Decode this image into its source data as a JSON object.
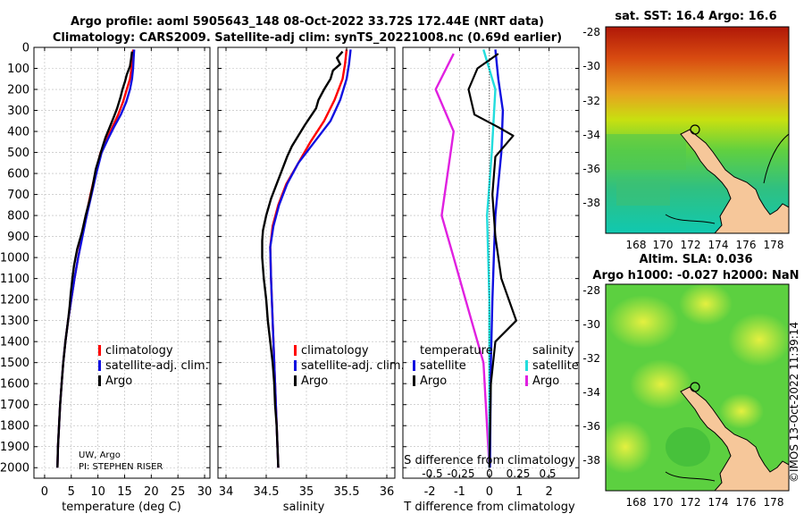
{
  "header": {
    "title_line1": "Argo profile: aoml 5905643_148 08-Oct-2022 33.72S 172.44E (NRT data)",
    "title_line2": "Climatology: CARS2009. Satellite-adj clim: synTS_20221008.nc (0.69d earlier)"
  },
  "depth_ticks": [
    0,
    100,
    200,
    300,
    400,
    500,
    600,
    700,
    800,
    900,
    1000,
    1100,
    1200,
    1300,
    1400,
    1500,
    1600,
    1700,
    1800,
    1900,
    2000
  ],
  "colors": {
    "climatology": "#ff0000",
    "satellite": "#1010e0",
    "argo": "#000000",
    "sat_salinity": "#22dddd",
    "argo_salinity": "#e020e0",
    "grid": "#b8b8b8"
  },
  "temperature_panel": {
    "xlabel": "temperature (deg C)",
    "xlim": [
      -2,
      31
    ],
    "xticks": [
      0,
      5,
      10,
      15,
      20,
      25,
      30
    ],
    "ylim": [
      0,
      2050
    ],
    "legend": [
      "climatology",
      "satellite-adj. clim.",
      "Argo"
    ],
    "note_line1": "UW, Argo",
    "note_line2": "PI: STEPHEN RISER",
    "series": {
      "climatology": [
        [
          16.6,
          10
        ],
        [
          16.5,
          50
        ],
        [
          16.3,
          100
        ],
        [
          16,
          150
        ],
        [
          15.4,
          200
        ],
        [
          14.7,
          260
        ],
        [
          13.8,
          320
        ],
        [
          12.7,
          380
        ],
        [
          11.6,
          440
        ],
        [
          10.5,
          500
        ],
        [
          9.5,
          600
        ],
        [
          8.6,
          700
        ],
        [
          7.8,
          800
        ],
        [
          7.0,
          900
        ],
        [
          6.3,
          1000
        ],
        [
          5.6,
          1100
        ],
        [
          5.0,
          1200
        ],
        [
          4.4,
          1300
        ],
        [
          3.9,
          1400
        ],
        [
          3.5,
          1500
        ],
        [
          3.2,
          1600
        ],
        [
          2.9,
          1700
        ],
        [
          2.7,
          1800
        ],
        [
          2.5,
          1900
        ],
        [
          2.4,
          2000
        ]
      ],
      "satellite": [
        [
          16.8,
          10
        ],
        [
          16.7,
          50
        ],
        [
          16.6,
          100
        ],
        [
          16.4,
          150
        ],
        [
          16.0,
          200
        ],
        [
          15.3,
          260
        ],
        [
          14.3,
          320
        ],
        [
          13.0,
          380
        ],
        [
          11.8,
          440
        ],
        [
          10.7,
          500
        ],
        [
          9.7,
          600
        ],
        [
          8.8,
          700
        ],
        [
          7.9,
          800
        ],
        [
          7.1,
          900
        ],
        [
          6.3,
          1000
        ],
        [
          5.6,
          1100
        ],
        [
          5.0,
          1200
        ],
        [
          4.4,
          1300
        ],
        [
          3.9,
          1400
        ],
        [
          3.5,
          1500
        ],
        [
          3.2,
          1600
        ],
        [
          2.9,
          1700
        ],
        [
          2.7,
          1800
        ],
        [
          2.5,
          1900
        ],
        [
          2.4,
          2000
        ]
      ],
      "argo": [
        [
          16.4,
          20
        ],
        [
          16.2,
          60
        ],
        [
          16.0,
          90
        ],
        [
          15.4,
          130
        ],
        [
          15.1,
          160
        ],
        [
          14.6,
          200
        ],
        [
          14.2,
          240
        ],
        [
          13.6,
          290
        ],
        [
          13.0,
          330
        ],
        [
          12.2,
          380
        ],
        [
          11.4,
          430
        ],
        [
          10.9,
          470
        ],
        [
          10.3,
          520
        ],
        [
          9.6,
          580
        ],
        [
          9.0,
          660
        ],
        [
          8.5,
          720
        ],
        [
          7.7,
          800
        ],
        [
          7.0,
          880
        ],
        [
          6.1,
          960
        ],
        [
          5.5,
          1040
        ],
        [
          5.2,
          1100
        ],
        [
          4.9,
          1170
        ],
        [
          4.7,
          1230
        ],
        [
          4.4,
          1300
        ],
        [
          3.9,
          1400
        ],
        [
          3.5,
          1500
        ],
        [
          3.2,
          1600
        ],
        [
          2.9,
          1700
        ],
        [
          2.7,
          1800
        ],
        [
          2.5,
          1900
        ],
        [
          2.4,
          2000
        ]
      ]
    }
  },
  "salinity_panel": {
    "xlabel": "salinity",
    "xlim": [
      33.9,
      36.1
    ],
    "xticks": [
      34,
      34.5,
      35,
      35.5,
      36
    ],
    "xtick_labels": [
      "34",
      "34.5",
      "35",
      "35.5",
      "36"
    ],
    "ylim": [
      0,
      2050
    ],
    "legend": [
      "climatology",
      "satellite-adj. clim.",
      "Argo"
    ],
    "series": {
      "climatology": [
        [
          35.5,
          10
        ],
        [
          35.48,
          80
        ],
        [
          35.45,
          150
        ],
        [
          35.35,
          250
        ],
        [
          35.22,
          350
        ],
        [
          35.05,
          450
        ],
        [
          34.9,
          550
        ],
        [
          34.75,
          650
        ],
        [
          34.65,
          750
        ],
        [
          34.58,
          850
        ],
        [
          34.55,
          950
        ],
        [
          34.56,
          1100
        ],
        [
          34.58,
          1300
        ],
        [
          34.6,
          1500
        ],
        [
          34.62,
          1700
        ],
        [
          34.64,
          1900
        ],
        [
          34.65,
          2000
        ]
      ],
      "satellite": [
        [
          35.55,
          10
        ],
        [
          35.53,
          80
        ],
        [
          35.5,
          150
        ],
        [
          35.42,
          250
        ],
        [
          35.3,
          350
        ],
        [
          35.1,
          450
        ],
        [
          34.9,
          550
        ],
        [
          34.76,
          650
        ],
        [
          34.66,
          750
        ],
        [
          34.59,
          850
        ],
        [
          34.55,
          950
        ],
        [
          34.56,
          1100
        ],
        [
          34.58,
          1300
        ],
        [
          34.6,
          1500
        ],
        [
          34.62,
          1700
        ],
        [
          34.64,
          1900
        ],
        [
          34.65,
          2000
        ]
      ],
      "argo": [
        [
          35.45,
          20
        ],
        [
          35.38,
          50
        ],
        [
          35.42,
          80
        ],
        [
          35.33,
          110
        ],
        [
          35.3,
          150
        ],
        [
          35.22,
          200
        ],
        [
          35.15,
          250
        ],
        [
          35.12,
          290
        ],
        [
          35.05,
          330
        ],
        [
          34.98,
          370
        ],
        [
          34.9,
          420
        ],
        [
          34.82,
          470
        ],
        [
          34.76,
          520
        ],
        [
          34.7,
          580
        ],
        [
          34.63,
          650
        ],
        [
          34.56,
          720
        ],
        [
          34.5,
          800
        ],
        [
          34.46,
          870
        ],
        [
          34.45,
          920
        ],
        [
          34.45,
          1000
        ],
        [
          34.47,
          1100
        ],
        [
          34.5,
          1200
        ],
        [
          34.52,
          1300
        ],
        [
          34.55,
          1400
        ],
        [
          34.58,
          1500
        ],
        [
          34.6,
          1600
        ],
        [
          34.61,
          1700
        ],
        [
          34.63,
          1800
        ],
        [
          34.64,
          1900
        ],
        [
          34.65,
          2000
        ]
      ]
    }
  },
  "difference_panel": {
    "xlabel_t": "T difference from climatology",
    "xlabel_s": "S difference from climatology",
    "xlim_t": [
      -2.9,
      3.0
    ],
    "xticks_t": [
      -2,
      -1,
      0,
      1,
      2
    ],
    "xticks_s_labels": [
      "-0.5",
      "-0.25",
      "0",
      "0.25",
      "0.5"
    ],
    "ylim": [
      0,
      2050
    ],
    "legend_temperature_title": "temperature",
    "legend_salinity_title": "salinity",
    "legend_temperature": [
      "satellite",
      "Argo"
    ],
    "legend_salinity": [
      "satellite",
      "Argo"
    ],
    "series": {
      "t_satellite": [
        [
          0.2,
          10
        ],
        [
          0.3,
          150
        ],
        [
          0.45,
          300
        ],
        [
          0.4,
          500
        ],
        [
          0.3,
          650
        ],
        [
          0.2,
          800
        ],
        [
          0.15,
          1000
        ],
        [
          0.1,
          1200
        ],
        [
          0.05,
          1500
        ],
        [
          0.02,
          2000
        ]
      ],
      "t_argo": [
        [
          0.3,
          30
        ],
        [
          -0.4,
          100
        ],
        [
          -0.7,
          200
        ],
        [
          -0.5,
          320
        ],
        [
          0.3,
          380
        ],
        [
          0.8,
          420
        ],
        [
          0.2,
          520
        ],
        [
          0.1,
          700
        ],
        [
          0.2,
          900
        ],
        [
          0.4,
          1100
        ],
        [
          0.9,
          1300
        ],
        [
          0.2,
          1400
        ],
        [
          0.05,
          1600
        ],
        [
          0.0,
          2000
        ]
      ],
      "s_satellite": [
        [
          -0.05,
          10
        ],
        [
          0.05,
          200
        ],
        [
          0.02,
          500
        ],
        [
          -0.02,
          800
        ],
        [
          0.0,
          1200
        ],
        [
          0.0,
          2000
        ]
      ],
      "s_argo": [
        [
          -0.3,
          30
        ],
        [
          -0.45,
          200
        ],
        [
          -0.3,
          400
        ],
        [
          -0.35,
          600
        ],
        [
          -0.4,
          800
        ],
        [
          -0.3,
          1000
        ],
        [
          -0.15,
          1300
        ],
        [
          -0.05,
          1500
        ],
        [
          0.0,
          2000
        ]
      ]
    }
  },
  "sst_map": {
    "title": "sat. SST: 16.4 Argo: 16.6",
    "lat_ticks": [
      "-28",
      "-30",
      "-32",
      "-34",
      "-36",
      "-38"
    ],
    "lon_ticks": [
      "168",
      "170",
      "172",
      "174",
      "176",
      "178"
    ]
  },
  "sla_map": {
    "title_line1": "Altim. SLA: 0.036",
    "title_line2": "Argo h1000: -0.027 h2000: NaN",
    "lat_ticks": [
      "-28",
      "-30",
      "-32",
      "-34",
      "-36",
      "-38"
    ],
    "lon_ticks": [
      "168",
      "170",
      "172",
      "174",
      "176",
      "178"
    ]
  },
  "timestamp": "©IMOS 13-Oct-2022 11:39:14"
}
